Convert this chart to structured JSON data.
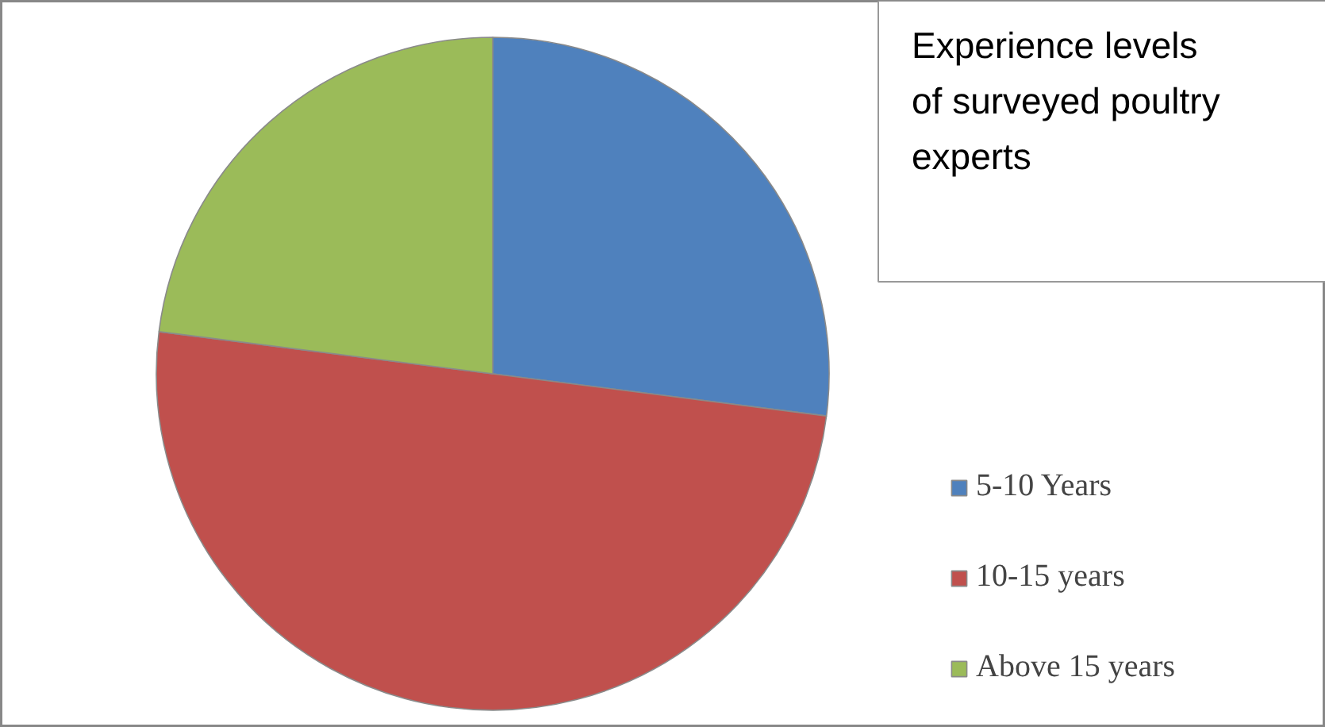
{
  "chart_data": {
    "type": "pie",
    "title": "Experience levels of surveyed poultry experts",
    "categories": [
      "5-10 Years",
      "10-15 years",
      "Above 15 years"
    ],
    "values": [
      27,
      50,
      23
    ],
    "colors": [
      "#4f81bd",
      "#c0504d",
      "#9bbb59"
    ],
    "legend": "right"
  }
}
